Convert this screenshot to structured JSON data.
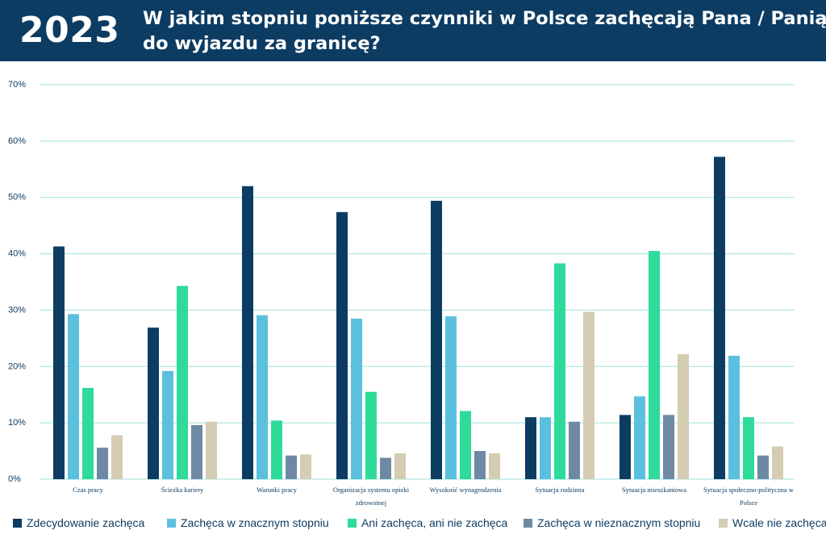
{
  "header": {
    "year": "2023",
    "title_line1": "W jakim stopniu poniższe czynniki w Polsce zachęcają Pana / Panią",
    "title_line2": "do wyjazdu za granicę?"
  },
  "colors": {
    "header_bg": "#0d3c63",
    "grid": "#9fe3dc"
  },
  "chart_data": {
    "type": "bar",
    "title": "W jakim stopniu poniższe czynniki w Polsce zachęcają Pana / Panią do wyjazdu za granicę?",
    "xlabel": "",
    "ylabel": "",
    "ylim": [
      0,
      70
    ],
    "yticks": [
      "0%",
      "10%",
      "20%",
      "30%",
      "40%",
      "50%",
      "60%",
      "70%"
    ],
    "grid": true,
    "legend_position": "bottom",
    "categories": [
      [
        "Czas pracy"
      ],
      [
        "Ścieżka kariery"
      ],
      [
        "Warunki pracy"
      ],
      [
        "Organizacja systemu opieki",
        "zdrowotnej"
      ],
      [
        "Wysokość wynagrodzenia"
      ],
      [
        "Sytuacja rodzinna"
      ],
      [
        "Sytuacja mieszkaniowa"
      ],
      [
        "Sytuacja społeczno-polityczna w",
        "Polsce"
      ]
    ],
    "series": [
      {
        "name": "Zdecydowanie zachęca",
        "color": "#0d3c63",
        "values": [
          41.3,
          26.9,
          52.0,
          47.4,
          49.4,
          11.0,
          11.4,
          57.2
        ]
      },
      {
        "name": "Zachęca w znacznym stopniu",
        "color": "#5bc0de",
        "values": [
          29.3,
          19.2,
          29.1,
          28.5,
          28.9,
          11.0,
          14.7,
          21.9
        ]
      },
      {
        "name": "Ani zachęca, ani nie zachęca",
        "color": "#2edb9a",
        "values": [
          16.2,
          34.3,
          10.4,
          15.5,
          12.1,
          38.3,
          40.5,
          11.0
        ]
      },
      {
        "name": "Zachęca w nieznacznym stopniu",
        "color": "#6e89a3",
        "values": [
          5.6,
          9.6,
          4.2,
          3.8,
          5.0,
          10.2,
          11.4,
          4.2
        ]
      },
      {
        "name": "Wcale nie zachęca",
        "color": "#d4ccb3",
        "values": [
          7.8,
          10.2,
          4.4,
          4.6,
          4.6,
          29.7,
          22.2,
          5.8
        ]
      }
    ]
  }
}
